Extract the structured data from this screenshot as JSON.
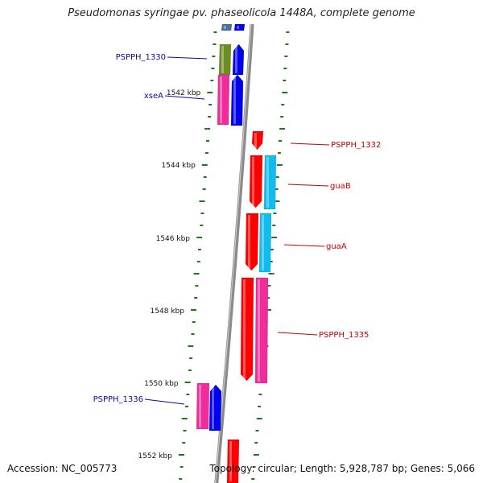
{
  "title": "Pseudomonas syringae pv. phaseolicola 1448A, complete genome",
  "accession": "Accession: NC_005773",
  "topology": "Topology: circular; Length: 5,928,787 bp; Genes: 5,066",
  "colors": {
    "backbone": "#8a8a8a",
    "tick": "#1a7a1a",
    "forward_label": "#0a0aa8",
    "reverse_label": "#c80000",
    "cds_red": "#ff0000",
    "cds_blue": "#0000ee",
    "cds_pink": "#ee2c9c",
    "cds_cyan": "#11bbee",
    "cds_olive": "#6b8e23",
    "cds_steel": "#4a6f9a"
  },
  "scale_labels": [
    "1542 kbp",
    "1544 kbp",
    "1546 kbp",
    "1548 kbp",
    "1550 kbp",
    "1552 kbp"
  ],
  "feature_labels": {
    "forward": [
      "PSPPH_1330",
      "xseA",
      "PSPPH_1336"
    ],
    "reverse": [
      "PSPPH_1332",
      "guaB",
      "guaA",
      "PSPPH_1335"
    ]
  }
}
